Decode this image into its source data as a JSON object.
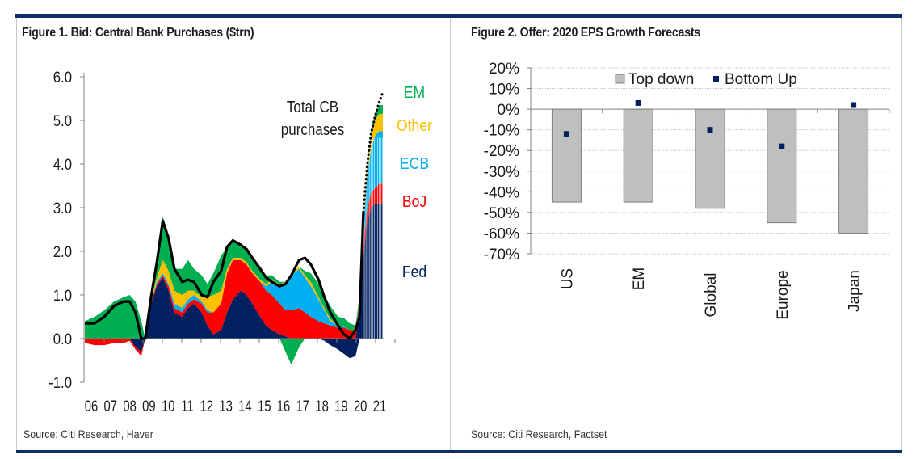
{
  "figure1": {
    "title": "Figure 1. Bid: Central Bank Purchases ($trn)",
    "source": "Source: Citi Research, Haver"
  },
  "figure2": {
    "title": "Figure 2. Offer: 2020 EPS Growth Forecasts",
    "source": "Source: Citi Research, Factset"
  },
  "colors": {
    "frame_bar": "#0b2f6b",
    "fed": "#002060",
    "boj": "#ff0000",
    "ecb": "#00b0f0",
    "other": "#ffc000",
    "em": "#00b050",
    "total_line": "#000000",
    "bar_fill": "#bfbfbf",
    "bar_edge": "#7f7f7f",
    "marker": "#002060"
  },
  "chart_data": [
    {
      "type": "area",
      "title": "Figure 1. Bid: Central Bank Purchases ($trn)",
      "xlabel": "",
      "ylabel": "",
      "ylim": [
        -1.0,
        6.0
      ],
      "yticks": [
        "6.0",
        "5.0",
        "4.0",
        "3.0",
        "2.0",
        "1.0",
        "0.0",
        "-1.0"
      ],
      "ytick_values": [
        6,
        5,
        4,
        3,
        2,
        1,
        0,
        -1
      ],
      "xticks": [
        "06",
        "07",
        "08",
        "09",
        "10",
        "11",
        "12",
        "13",
        "14",
        "15",
        "16",
        "17",
        "18",
        "19",
        "20",
        "21"
      ],
      "x_range": [
        2006.0,
        2021.3
      ],
      "annotation": "Total CB purchases",
      "annotation_lines": [
        "Total CB",
        "purchases"
      ],
      "stacked": true,
      "legend": [
        {
          "name": "EM",
          "color": "#00b050"
        },
        {
          "name": "Other",
          "color": "#ffc000"
        },
        {
          "name": "ECB",
          "color": "#00b0f0"
        },
        {
          "name": "BoJ",
          "color": "#ff0000"
        },
        {
          "name": "Fed",
          "color": "#002060"
        }
      ],
      "x": [
        2006.0,
        2006.5,
        2007.0,
        2007.5,
        2008.0,
        2008.3,
        2008.6,
        2008.9,
        2009.1,
        2009.4,
        2009.7,
        2010.0,
        2010.3,
        2010.6,
        2011.0,
        2011.3,
        2011.6,
        2012.0,
        2012.3,
        2012.6,
        2013.0,
        2013.3,
        2013.6,
        2014.0,
        2014.3,
        2014.6,
        2015.0,
        2015.3,
        2015.6,
        2016.0,
        2016.3,
        2016.6,
        2017.0,
        2017.3,
        2017.6,
        2018.0,
        2018.3,
        2018.6,
        2019.0,
        2019.3,
        2019.6,
        2019.9,
        2020.1,
        2020.3,
        2020.5,
        2020.7,
        2020.9,
        2021.1,
        2021.3
      ],
      "series": [
        {
          "name": "Fed",
          "values": [
            0,
            0,
            0,
            0,
            0,
            0,
            -0.2,
            -0.3,
            0,
            0.8,
            1.2,
            1.4,
            1.1,
            0.6,
            0.5,
            0.7,
            0.8,
            0.6,
            0.3,
            0.1,
            0.2,
            0.6,
            0.9,
            1.1,
            1.0,
            0.8,
            0.5,
            0.3,
            0.2,
            0.1,
            0.05,
            0,
            0,
            0,
            0,
            0,
            -0.05,
            -0.15,
            -0.25,
            -0.35,
            -0.45,
            -0.4,
            0.6,
            1.9,
            2.7,
            3.0,
            3.1,
            3.1,
            3.1
          ]
        },
        {
          "name": "BoJ",
          "values": [
            -0.1,
            -0.15,
            -0.15,
            -0.1,
            -0.1,
            -0.05,
            -0.05,
            -0.1,
            0,
            0.05,
            0.05,
            0.05,
            0.1,
            0.1,
            0.1,
            0.1,
            0.1,
            0.2,
            0.3,
            0.5,
            0.6,
            0.9,
            0.9,
            0.7,
            0.7,
            0.7,
            0.8,
            0.8,
            0.8,
            0.7,
            0.6,
            0.65,
            0.7,
            0.6,
            0.5,
            0.4,
            0.35,
            0.3,
            0.25,
            0.25,
            0.2,
            0.2,
            0.2,
            0.25,
            0.3,
            0.35,
            0.35,
            0.45,
            0.45
          ]
        },
        {
          "name": "ECB",
          "values": [
            0,
            0,
            0,
            0,
            0,
            0,
            0,
            0,
            0,
            0,
            0.05,
            0.05,
            0.05,
            0.1,
            0.1,
            0.1,
            0.1,
            0.05,
            0.05,
            0,
            0,
            0,
            0,
            0,
            0,
            0,
            0,
            0.1,
            0.3,
            0.4,
            0.6,
            0.8,
            0.9,
            0.8,
            0.7,
            0.5,
            0.3,
            0.1,
            0.05,
            0.02,
            0,
            0,
            0.1,
            0.4,
            0.8,
            1.0,
            1.2,
            1.2,
            1.2
          ]
        },
        {
          "name": "Other",
          "values": [
            0,
            0,
            0,
            0,
            0,
            0,
            0,
            0,
            0,
            0.05,
            0.1,
            0.3,
            0.3,
            0.3,
            0.3,
            0.2,
            0.1,
            0.1,
            0.3,
            0.4,
            0.3,
            0.1,
            0.05,
            0.05,
            0.05,
            0.05,
            0.05,
            0.05,
            0.05,
            0.05,
            0.05,
            0.05,
            0.05,
            0.05,
            0.1,
            0.05,
            0.05,
            0.05,
            0,
            0,
            0,
            0,
            0.05,
            0.1,
            0.2,
            0.3,
            0.35,
            0.4,
            0.4
          ]
        },
        {
          "name": "EM",
          "values": [
            0.4,
            0.5,
            0.65,
            0.85,
            0.95,
            1.0,
            0.85,
            0.4,
            0,
            0.1,
            0.4,
            1.0,
            0.8,
            0.5,
            0.6,
            0.7,
            0.5,
            0.5,
            0.3,
            0.5,
            0.8,
            0.5,
            0.4,
            0.3,
            0.3,
            0.3,
            0.3,
            0.2,
            0.1,
            0.05,
            -0.3,
            -0.6,
            -0.2,
            0.1,
            0.2,
            0.3,
            0.3,
            0.3,
            0.2,
            0.2,
            0.15,
            0.1,
            0.05,
            0.1,
            0.1,
            0.1,
            0.15,
            0.2,
            0.2
          ]
        },
        {
          "name": "Total CB purchases",
          "values": [
            0.35,
            0.35,
            0.5,
            0.75,
            0.85,
            0.85,
            0.6,
            0.0,
            0.0,
            0.95,
            1.75,
            2.7,
            2.3,
            1.6,
            1.3,
            1.35,
            1.3,
            1.0,
            0.95,
            1.3,
            1.55,
            2.1,
            2.25,
            2.15,
            2.05,
            1.85,
            1.6,
            1.4,
            1.3,
            1.2,
            1.25,
            1.45,
            1.8,
            1.85,
            1.7,
            1.35,
            0.95,
            0.6,
            0.3,
            0.1,
            0.0,
            0.2,
            0.5,
            2.9,
            4.0,
            4.7,
            5.1,
            5.4,
            5.65
          ]
        }
      ]
    },
    {
      "type": "bar",
      "title": "Figure 2. Offer: 2020 EPS Growth Forecasts",
      "xlabel": "",
      "ylabel": "",
      "ylim": [
        -70,
        20
      ],
      "yticks": [
        "20%",
        "10%",
        "0%",
        "-10%",
        "-20%",
        "-30%",
        "-40%",
        "-50%",
        "-60%",
        "-70%"
      ],
      "ytick_values": [
        20,
        10,
        0,
        -10,
        -20,
        -30,
        -40,
        -50,
        -60,
        -70
      ],
      "grid": true,
      "legend_position": "top",
      "categories": [
        "US",
        "EM",
        "Global",
        "Europe",
        "Japan"
      ],
      "series": [
        {
          "name": "Top down",
          "kind": "bar",
          "values": [
            -45,
            -45,
            -48,
            -55,
            -60
          ]
        },
        {
          "name": "Bottom Up",
          "kind": "marker",
          "values": [
            -12,
            3,
            -10,
            -18,
            2
          ]
        }
      ]
    }
  ]
}
